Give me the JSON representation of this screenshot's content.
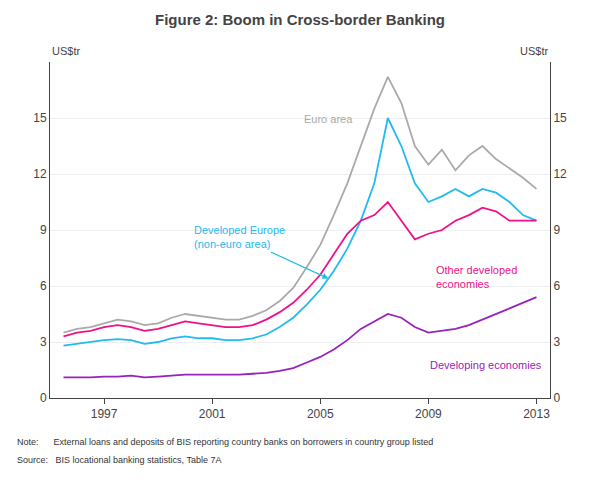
{
  "chart_data": {
    "type": "line",
    "title": "Figure 2: Boom in Cross-border Banking",
    "ylabel": "US$tr",
    "y2label": "US$tr",
    "annotations": [
      "Note:      External loans and deposits of BIS reporting country banks on borrowers in country group listed",
      "Source:   BIS locational banking statistics, Table 7A"
    ],
    "x": [
      1995.5,
      1996.0,
      1996.5,
      1997.0,
      1997.5,
      1998.0,
      1998.5,
      1999.0,
      1999.5,
      2000.0,
      2000.5,
      2001.0,
      2001.5,
      2002.0,
      2002.5,
      2003.0,
      2003.5,
      2004.0,
      2004.5,
      2005.0,
      2005.5,
      2006.0,
      2006.5,
      2007.0,
      2007.5,
      2008.0,
      2008.5,
      2009.0,
      2009.5,
      2010.0,
      2010.5,
      2011.0,
      2011.5,
      2012.0,
      2012.5,
      2013.0
    ],
    "xlim": [
      1995.0,
      2013.5
    ],
    "xticks": [
      1997,
      2001,
      2005,
      2009,
      2013
    ],
    "ylim": [
      0,
      18
    ],
    "yticks": [
      0,
      3,
      6,
      9,
      12,
      15
    ],
    "y2lim": [
      0,
      18
    ],
    "y2ticks": [
      0,
      3,
      6,
      9,
      12,
      15
    ],
    "grid": "y",
    "series": [
      {
        "name": "Euro area",
        "color": "#AAAAAA",
        "values": [
          3.5,
          3.7,
          3.8,
          4.0,
          4.2,
          4.1,
          3.9,
          4.0,
          4.3,
          4.5,
          4.4,
          4.3,
          4.2,
          4.2,
          4.4,
          4.7,
          5.2,
          5.9,
          7.0,
          8.2,
          9.8,
          11.5,
          13.5,
          15.5,
          17.2,
          15.8,
          13.5,
          12.5,
          13.3,
          12.2,
          13.0,
          13.5,
          12.8,
          12.3,
          11.8,
          11.2
        ]
      },
      {
        "name": "Developed Europe\n(non-euro area)",
        "color": "#22BBEE",
        "values": [
          2.8,
          2.9,
          3.0,
          3.1,
          3.15,
          3.1,
          2.9,
          3.0,
          3.2,
          3.3,
          3.2,
          3.2,
          3.1,
          3.1,
          3.2,
          3.4,
          3.8,
          4.3,
          5.0,
          5.8,
          6.8,
          8.0,
          9.5,
          11.5,
          15.0,
          13.5,
          11.5,
          10.5,
          10.8,
          11.2,
          10.8,
          11.2,
          11.0,
          10.5,
          9.8,
          9.5
        ]
      },
      {
        "name": "Other developed\neconomies",
        "color": "#EE1188",
        "values": [
          3.3,
          3.5,
          3.6,
          3.8,
          3.9,
          3.8,
          3.6,
          3.7,
          3.9,
          4.1,
          4.0,
          3.9,
          3.8,
          3.8,
          3.9,
          4.2,
          4.6,
          5.1,
          5.8,
          6.6,
          7.7,
          8.8,
          9.5,
          9.8,
          10.5,
          9.5,
          8.5,
          8.8,
          9.0,
          9.5,
          9.8,
          10.2,
          10.0,
          9.5,
          9.5,
          9.5
        ]
      },
      {
        "name": "Developing economies",
        "color": "#9922BB",
        "values": [
          1.1,
          1.1,
          1.1,
          1.15,
          1.15,
          1.2,
          1.1,
          1.15,
          1.2,
          1.25,
          1.25,
          1.25,
          1.25,
          1.25,
          1.3,
          1.35,
          1.45,
          1.6,
          1.9,
          2.2,
          2.6,
          3.1,
          3.7,
          4.1,
          4.5,
          4.3,
          3.8,
          3.5,
          3.6,
          3.7,
          3.9,
          4.2,
          4.5,
          4.8,
          5.1,
          5.4
        ]
      }
    ]
  }
}
